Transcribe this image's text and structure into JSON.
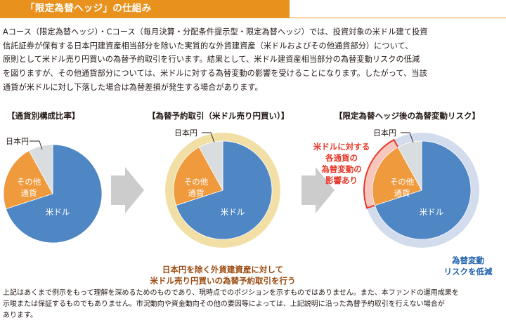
{
  "header": {
    "title": "「限定為替ヘッジ」の仕組み"
  },
  "intro": {
    "lines": [
      "Aコース（限定為替ヘッジ）・Cコース（毎月決算・分配条件提示型・限定為替ヘッジ）では、投資対象の米ドル建て投資",
      "信託証券が保有する日本円建資産相当部分を除いた実質的な外貨建資産（米ドルおよびその他通貨部分）について、",
      "原則として米ドル売り円買いの為替予約取引を行います。結果として、米ドル建資産相当部分の為替変動リスクの低減",
      "を図りますが、その他通貨部分については、米ドルに対する為替変動の影響を受けることになります。したがって、当該",
      "通貨が米ドルに対し下落した場合は為替差損が発生する場合があります。"
    ]
  },
  "sections": {
    "composition_title": "【通貨別構成比率】",
    "forward_title": "【為替予約取引（米ドル売り円買い）】",
    "risk_title": "【限定為替ヘッジ後の為替変動リスク】"
  },
  "labels": {
    "jpy": "日本円",
    "other_line1": "その他",
    "other_line2": "通貨",
    "usd": "米ドル"
  },
  "annotations": {
    "forward_line1": "日本円を除く外貨建資産に対して",
    "forward_line2": "米ドル売り円買いの為替予約取引を行う",
    "other_risk_lines": [
      "米ドルに対する",
      "各通貨の",
      "為替変動の",
      "影響あり"
    ],
    "usd_risk_line1": "為替変動",
    "usd_risk_line2": "リスクを低減"
  },
  "chart_data": {
    "type": "pie",
    "categories": [
      "米ドル",
      "その他通貨",
      "日本円"
    ],
    "values": [
      70,
      22,
      8
    ]
  },
  "colors": {
    "header": "#e8921d",
    "usd": "#4f86c4",
    "other": "#f09a3e",
    "jpy": "#d9dde0",
    "forward_ring": "#f2dfa6",
    "risk_ring": "#d3dced",
    "highlight": "#e73828",
    "annotation_blue": "#1f62ad",
    "annotation_brown": "#9a4a0f",
    "arrow": "#cccccc"
  },
  "footnote": {
    "lines": [
      "上記はあくまで例示をもって理解を深めるためのものであり、現時点でのポジションを示すものではありません。また、本ファンドの運用成果を",
      "示唆または保証するものでもありません。市況動向や資金動向その他の要因等によっては、上記説明に沿った為替予約取引を行えない場合が",
      "あります。"
    ]
  }
}
